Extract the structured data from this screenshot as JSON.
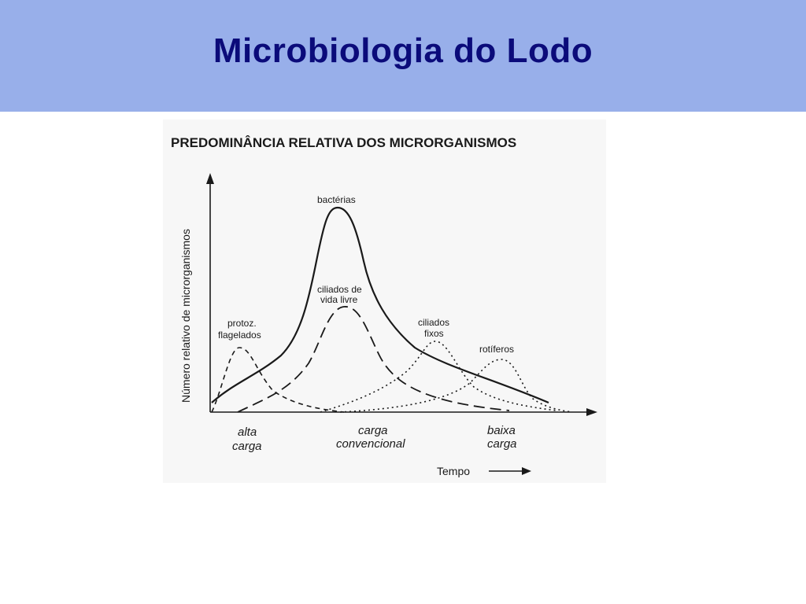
{
  "slide": {
    "title": "Microbiologia do Lodo",
    "header_color": "#98afea",
    "title_color": "#0b0b7a"
  },
  "diagram": {
    "title": "PREDOMINÂNCIA RELATIVA DOS MICRORGANISMOS",
    "y_axis_label": "Número relativo de microrganismos",
    "x_axis_label": "Tempo",
    "x_axis_arrow": "right-arrow-icon",
    "categories": [
      {
        "line1": "alta",
        "line2": "carga"
      },
      {
        "line1": "carga",
        "line2": "convencional"
      },
      {
        "line1": "baixa",
        "line2": "carga"
      }
    ],
    "curves": [
      {
        "line1": "bactérias",
        "line2": "",
        "style": "solid"
      },
      {
        "line1": "ciliados de",
        "line2": "vida livre",
        "style": "dashed"
      },
      {
        "line1": "protoz.",
        "line2": "flagelados",
        "style": "short-dashed"
      },
      {
        "line1": "ciliados",
        "line2": "fixos",
        "style": "dotted"
      },
      {
        "line1": "rotíferos",
        "line2": "",
        "style": "dotted"
      }
    ]
  }
}
